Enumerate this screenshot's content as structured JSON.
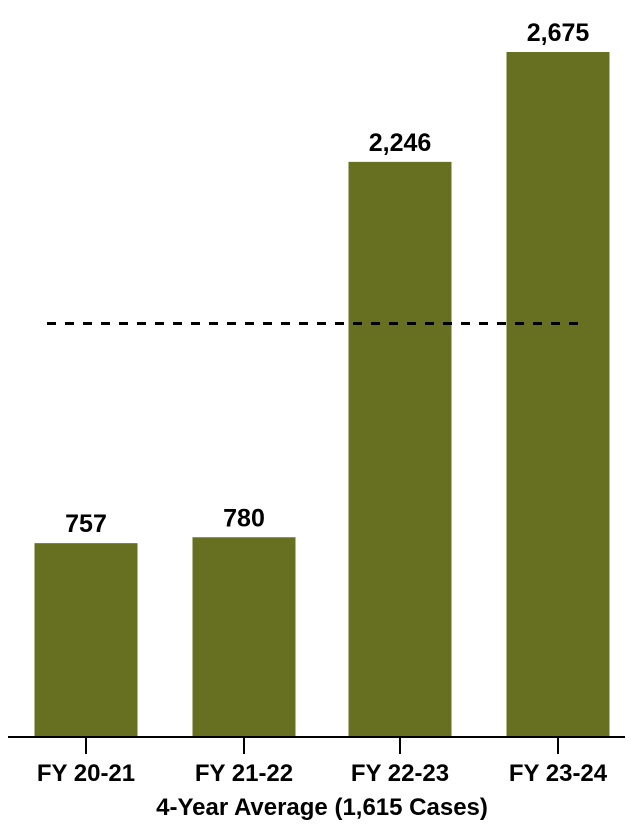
{
  "chart_data": {
    "type": "bar",
    "categories": [
      "FY 20-21",
      "FY 21-22",
      "FY 22-23",
      "FY 23-24"
    ],
    "values": [
      757,
      780,
      2246,
      2675
    ],
    "value_labels": [
      "757",
      "780",
      "2,246",
      "2,675"
    ],
    "ylim": [
      0,
      2800
    ],
    "reference_line": {
      "value": 1615,
      "style": "dashed"
    },
    "xlabel": "4-Year Average (1,615 Cases)",
    "bar_color": "#667020",
    "grid": false,
    "legend": "none"
  }
}
